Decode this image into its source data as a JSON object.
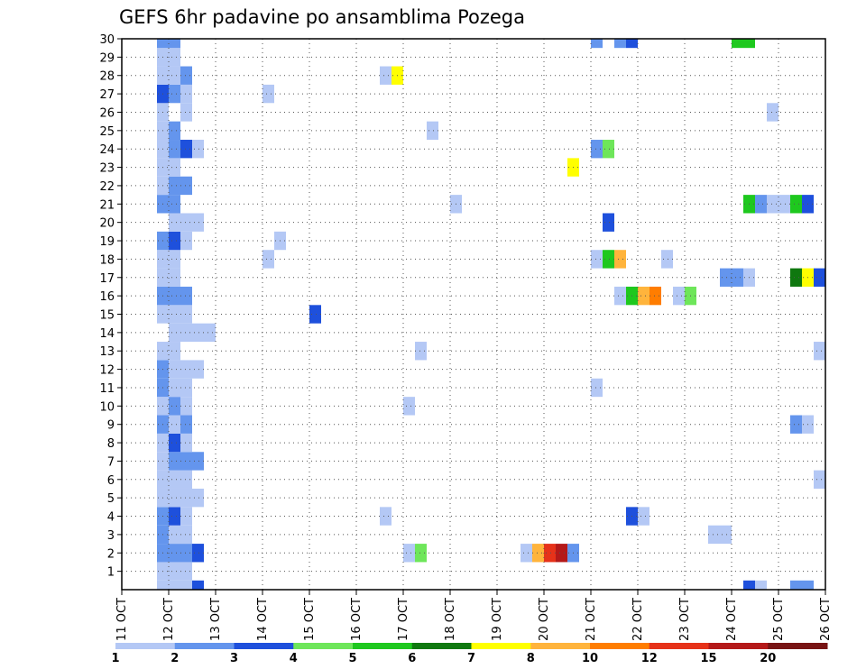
{
  "chart_data": {
    "type": "heatmap",
    "title": "GEFS 6hr padavine po ansamblima Pozega",
    "xlabel": "",
    "ylabel": "",
    "x_ticks": [
      "11 OCT",
      "12 OCT",
      "13 OCT",
      "14 OCT",
      "15 OCT",
      "16 OCT",
      "17 OCT",
      "18 OCT",
      "19 OCT",
      "20 OCT",
      "21 OCT",
      "22 OCT",
      "23 OCT",
      "24 OCT",
      "25 OCT",
      "26 OCT"
    ],
    "x_range": [
      0,
      15
    ],
    "y_ticks": [
      1,
      2,
      3,
      4,
      5,
      6,
      7,
      8,
      9,
      10,
      11,
      12,
      13,
      14,
      15,
      16,
      17,
      18,
      19,
      20,
      21,
      22,
      23,
      24,
      25,
      26,
      27,
      28,
      29,
      30
    ],
    "y_range": [
      0,
      30
    ],
    "grid": true,
    "colorbar": {
      "placement": "bottom",
      "levels": [
        "1",
        "2",
        "3",
        "4",
        "5",
        "6",
        "7",
        "8",
        "10",
        "12",
        "15",
        "20"
      ],
      "colors": [
        "#b4c8f5",
        "#6495ed",
        "#1e50dc",
        "#6ee65a",
        "#1ec81e",
        "#0f780f",
        "#ffff00",
        "#ffb43c",
        "#ff7d00",
        "#e63219",
        "#b41919",
        "#781414"
      ]
    },
    "cells": [
      [
        0.75,
        0,
        1
      ],
      [
        1.0,
        0,
        1
      ],
      [
        1.25,
        0,
        1
      ],
      [
        1.5,
        0,
        3
      ],
      [
        0.75,
        1,
        1
      ],
      [
        1.0,
        1,
        1
      ],
      [
        1.25,
        1,
        1
      ],
      [
        0.75,
        2,
        2
      ],
      [
        1.0,
        2,
        2
      ],
      [
        1.25,
        2,
        2
      ],
      [
        1.5,
        2,
        3
      ],
      [
        0.75,
        3,
        2
      ],
      [
        1.0,
        3,
        1
      ],
      [
        1.25,
        3,
        1
      ],
      [
        0.75,
        4,
        2
      ],
      [
        1.0,
        4,
        3
      ],
      [
        1.25,
        4,
        1
      ],
      [
        0.75,
        5,
        1
      ],
      [
        1.0,
        5,
        1
      ],
      [
        1.25,
        5,
        1
      ],
      [
        1.5,
        5,
        1
      ],
      [
        0.75,
        6,
        1
      ],
      [
        1.0,
        6,
        1
      ],
      [
        1.25,
        6,
        1
      ],
      [
        0.75,
        7,
        1
      ],
      [
        1.0,
        7,
        2
      ],
      [
        1.25,
        7,
        2
      ],
      [
        1.5,
        7,
        2
      ],
      [
        0.75,
        8,
        1
      ],
      [
        1.0,
        8,
        3
      ],
      [
        1.25,
        8,
        1
      ],
      [
        0.75,
        9,
        2
      ],
      [
        1.0,
        9,
        1
      ],
      [
        1.25,
        9,
        2
      ],
      [
        0.75,
        10,
        1
      ],
      [
        1.0,
        10,
        2
      ],
      [
        1.25,
        10,
        1
      ],
      [
        0.75,
        11,
        2
      ],
      [
        1.0,
        11,
        1
      ],
      [
        1.25,
        11,
        1
      ],
      [
        0.75,
        12,
        2
      ],
      [
        1.0,
        12,
        1
      ],
      [
        1.25,
        12,
        1
      ],
      [
        1.5,
        12,
        1
      ],
      [
        0.75,
        13,
        1
      ],
      [
        1.0,
        13,
        1
      ],
      [
        1.0,
        14,
        1
      ],
      [
        1.25,
        14,
        1
      ],
      [
        1.5,
        14,
        1
      ],
      [
        1.75,
        14,
        1
      ],
      [
        0.75,
        15,
        1
      ],
      [
        1.0,
        15,
        1
      ],
      [
        1.25,
        15,
        1
      ],
      [
        0.75,
        16,
        2
      ],
      [
        1.0,
        16,
        2
      ],
      [
        1.25,
        16,
        2
      ],
      [
        0.75,
        17,
        1
      ],
      [
        1.0,
        17,
        1
      ],
      [
        0.75,
        18,
        1
      ],
      [
        1.0,
        18,
        1
      ],
      [
        0.75,
        19,
        2
      ],
      [
        1.0,
        19,
        3
      ],
      [
        1.25,
        19,
        1
      ],
      [
        1.0,
        20,
        1
      ],
      [
        1.25,
        20,
        1
      ],
      [
        1.5,
        20,
        1
      ],
      [
        0.75,
        21,
        2
      ],
      [
        1.0,
        21,
        2
      ],
      [
        0.75,
        22,
        1
      ],
      [
        1.0,
        22,
        2
      ],
      [
        1.25,
        22,
        2
      ],
      [
        0.75,
        23,
        1
      ],
      [
        1.0,
        23,
        1
      ],
      [
        0.75,
        24,
        1
      ],
      [
        1.0,
        24,
        2
      ],
      [
        1.25,
        24,
        3
      ],
      [
        1.5,
        24,
        1
      ],
      [
        0.75,
        25,
        1
      ],
      [
        1.0,
        25,
        2
      ],
      [
        0.75,
        26,
        1
      ],
      [
        1.25,
        26,
        1
      ],
      [
        0.75,
        27,
        3
      ],
      [
        1.0,
        27,
        2
      ],
      [
        1.25,
        27,
        1
      ],
      [
        0.75,
        28,
        1
      ],
      [
        1.0,
        28,
        1
      ],
      [
        1.25,
        28,
        2
      ],
      [
        0.75,
        29,
        1
      ],
      [
        1.0,
        29,
        1
      ],
      [
        0.75,
        30,
        2
      ],
      [
        1.0,
        30,
        2
      ],
      [
        3.0,
        27,
        1
      ],
      [
        3.0,
        18,
        1
      ],
      [
        3.25,
        19,
        1
      ],
      [
        4.0,
        15,
        3
      ],
      [
        5.5,
        4,
        1
      ],
      [
        5.5,
        28,
        1
      ],
      [
        5.75,
        28,
        7
      ],
      [
        6.0,
        2,
        1
      ],
      [
        6.0,
        10,
        1
      ],
      [
        6.25,
        2,
        4
      ],
      [
        6.25,
        13,
        1
      ],
      [
        6.5,
        25,
        1
      ],
      [
        7.0,
        21,
        1
      ],
      [
        8.5,
        2,
        1
      ],
      [
        8.75,
        2,
        8
      ],
      [
        9.0,
        2,
        10
      ],
      [
        9.25,
        2,
        11
      ],
      [
        9.5,
        2,
        2
      ],
      [
        9.5,
        23,
        7
      ],
      [
        10.0,
        11,
        1
      ],
      [
        10.0,
        18,
        1
      ],
      [
        10.0,
        24,
        2
      ],
      [
        10.0,
        30,
        2
      ],
      [
        10.25,
        18,
        5
      ],
      [
        10.25,
        20,
        3
      ],
      [
        10.25,
        24,
        4
      ],
      [
        10.5,
        18,
        8
      ],
      [
        10.5,
        16,
        1
      ],
      [
        10.5,
        30,
        2
      ],
      [
        10.75,
        30,
        3
      ],
      [
        10.75,
        16,
        5
      ],
      [
        11.0,
        16,
        8
      ],
      [
        11.25,
        16,
        9
      ],
      [
        10.75,
        4,
        3
      ],
      [
        11.0,
        4,
        1
      ],
      [
        11.5,
        18,
        1
      ],
      [
        11.75,
        16,
        1
      ],
      [
        12.0,
        16,
        4
      ],
      [
        12.5,
        3,
        1
      ],
      [
        12.75,
        3,
        1
      ],
      [
        12.75,
        17,
        2
      ],
      [
        13.0,
        17,
        2
      ],
      [
        13.25,
        17,
        1
      ],
      [
        13.0,
        30,
        5
      ],
      [
        13.25,
        30,
        5
      ],
      [
        13.25,
        21,
        5
      ],
      [
        13.5,
        21,
        2
      ],
      [
        13.75,
        21,
        1
      ],
      [
        14.0,
        21,
        1
      ],
      [
        14.25,
        21,
        5
      ],
      [
        14.5,
        21,
        3
      ],
      [
        13.25,
        0,
        3
      ],
      [
        13.5,
        0,
        1
      ],
      [
        13.75,
        26,
        1
      ],
      [
        14.25,
        17,
        6
      ],
      [
        14.5,
        17,
        7
      ],
      [
        14.75,
        17,
        3
      ],
      [
        14.25,
        9,
        2
      ],
      [
        14.5,
        9,
        1
      ],
      [
        14.25,
        0,
        2
      ],
      [
        14.5,
        0,
        2
      ],
      [
        14.75,
        13,
        1
      ],
      [
        14.75,
        6,
        1
      ]
    ]
  }
}
